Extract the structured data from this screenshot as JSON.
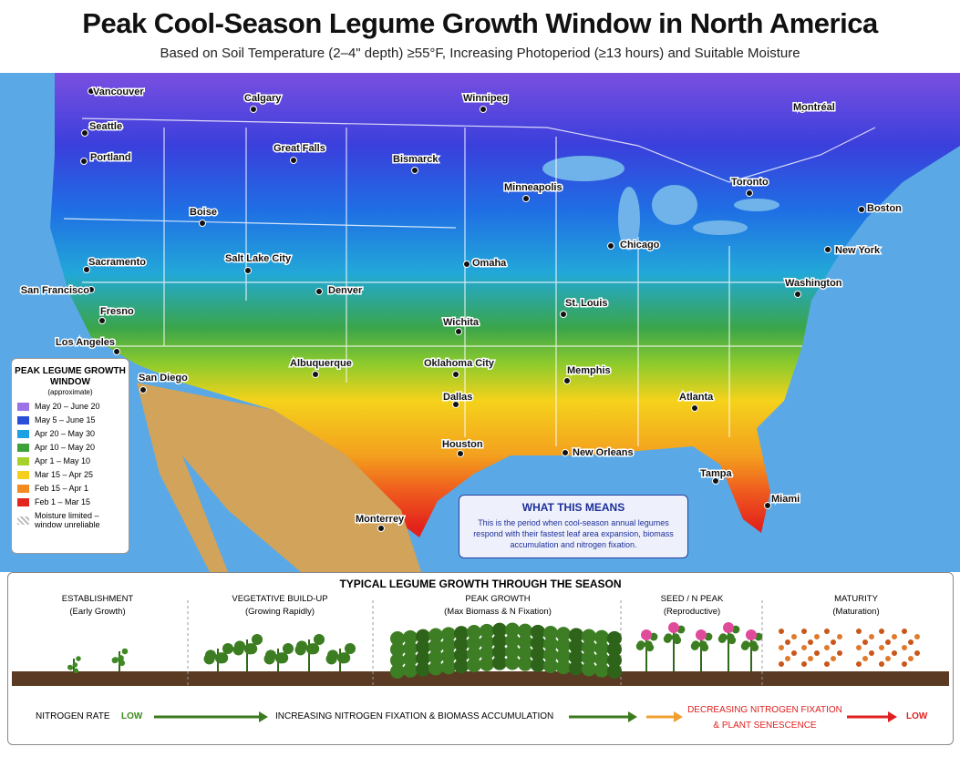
{
  "header": {
    "title": "Peak Cool-Season Legume Growth Window in North America",
    "subtitle": "Based on Soil Temperature (2–4\" depth) ≥55°F, Increasing Photoperiod (≥13 hours) and Suitable Moisture"
  },
  "cities": [
    "Vancouver",
    "Calgary",
    "Winnipeg",
    "Montréal",
    "Seattle",
    "Great Falls",
    "Bismarck",
    "Portland",
    "Minneapolis",
    "Toronto",
    "Boston",
    "Boise",
    "Chicago",
    "New York",
    "Sacramento",
    "Salt Lake City",
    "Omaha",
    "Denver",
    "San Francisco",
    "Fresno",
    "St. Louis",
    "Washington",
    "Wichita",
    "Los Angeles",
    "Albuquerque",
    "Oklahoma City",
    "Memphis",
    "San Diego",
    "Dallas",
    "Atlanta",
    "Houston",
    "New Orleans",
    "Tampa",
    "Miami",
    "Monterrey"
  ],
  "legend": {
    "title": "PEAK LEGUME GROWTH WINDOW",
    "subtitle": "(approximate)",
    "items": [
      {
        "label": "May 20 – June 20",
        "color": "#9a72e6"
      },
      {
        "label": "May 5 – June 15",
        "color": "#2c4fd8"
      },
      {
        "label": "Apr 20 – May 30",
        "color": "#1ca2e2"
      },
      {
        "label": "Apr 10 – May 20",
        "color": "#3ea23a"
      },
      {
        "label": "Apr 1 – May 10",
        "color": "#a7d12b"
      },
      {
        "label": "Mar 15 – Apr 25",
        "color": "#f5cf1b"
      },
      {
        "label": "Feb 15 – Apr 1",
        "color": "#f28a1f"
      },
      {
        "label": "Feb 1 – Mar 15",
        "color": "#e2261d"
      },
      {
        "label": "Moisture limited – window unreliable",
        "color": "#bdbdbd"
      }
    ]
  },
  "callout": {
    "title": "WHAT THIS MEANS",
    "text": "This is the period when cool-season annual legumes respond with their fastest leaf area expansion, biomass accumulation and nitrogen fixation."
  },
  "growth": {
    "title": "TYPICAL LEGUME GROWTH THROUGH THE SEASON",
    "stages": [
      {
        "name": "ESTABLISHMENT",
        "sub": "(Early Growth)"
      },
      {
        "name": "VEGETATIVE BUILD-UP",
        "sub": "(Growing Rapidly)"
      },
      {
        "name": "PEAK GROWTH",
        "sub": "(Max Biomass & N Fixation)"
      },
      {
        "name": "SEED / N PEAK",
        "sub": "(Reproductive)"
      },
      {
        "name": "MATURITY",
        "sub": "(Maturation)"
      }
    ],
    "nitrogen": {
      "label": "NITROGEN RATE",
      "start": "LOW",
      "increasing": "INCREASING NITROGEN FIXATION & BIOMASS ACCUMULATION",
      "decreasing": "DECREASING NITROGEN FIXATION & PLANT SENESCENCE",
      "end": "LOW"
    }
  }
}
